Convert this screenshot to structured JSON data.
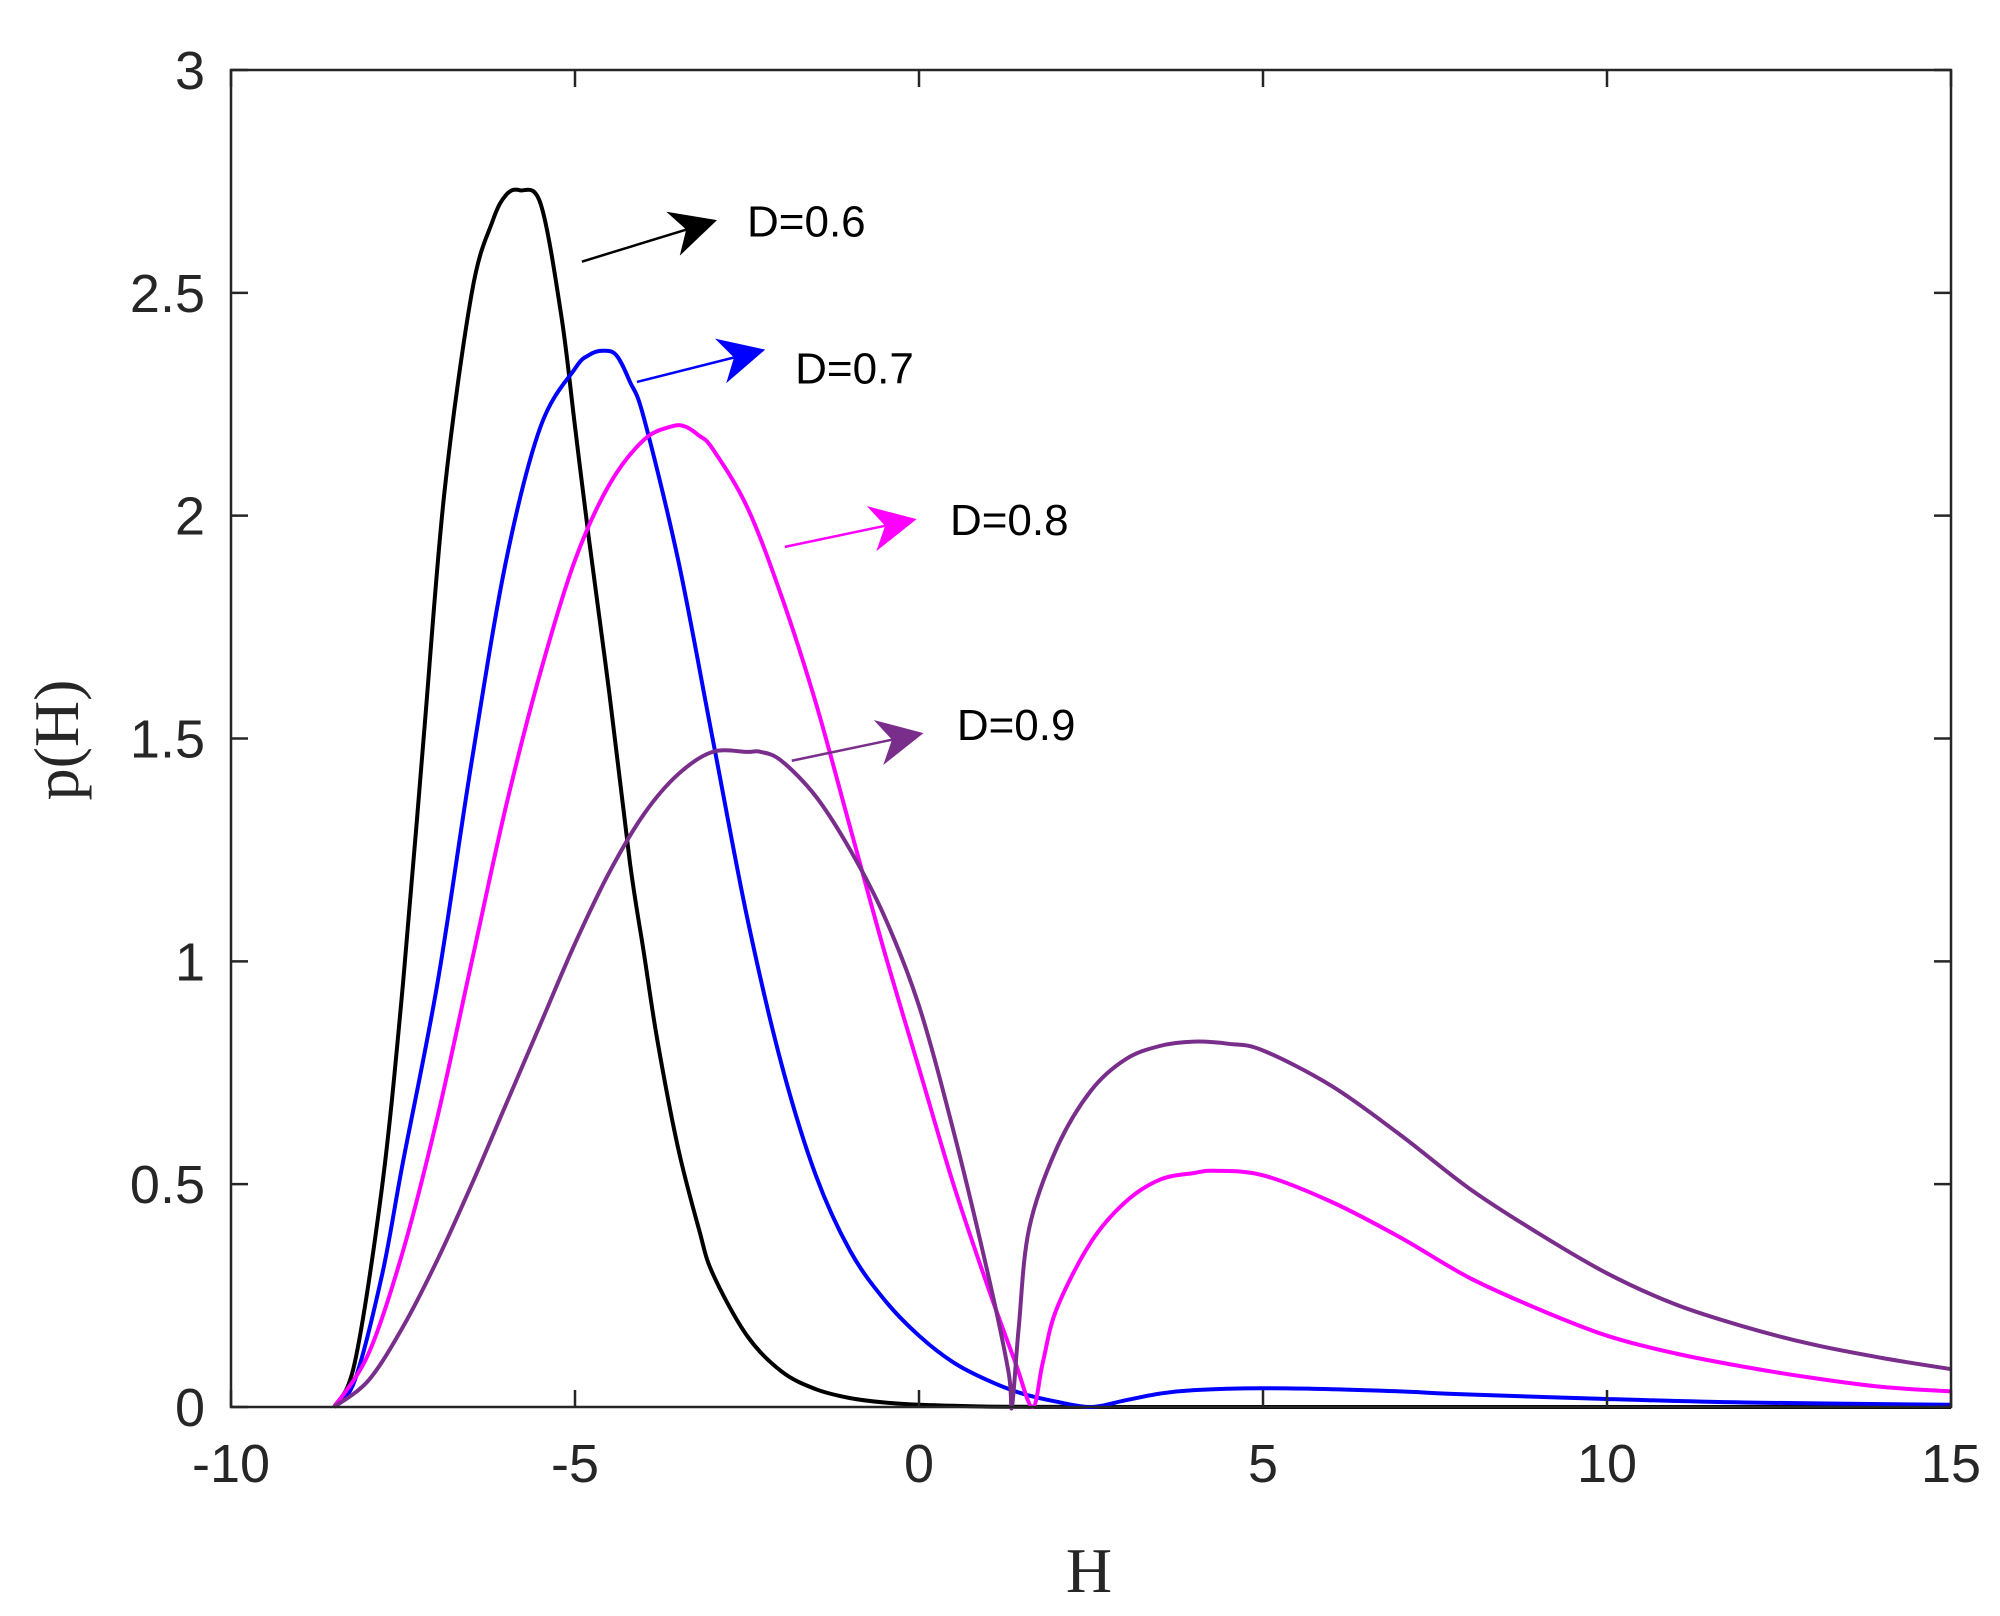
{
  "chart_data": {
    "type": "line",
    "title": "",
    "xlabel": "H",
    "ylabel": "p(H)",
    "xlim": [
      -10,
      15
    ],
    "ylim": [
      0,
      3
    ],
    "xticks": [
      -10,
      -5,
      0,
      5,
      10,
      15
    ],
    "xtick_labels": [
      "-10",
      "-5",
      "0",
      "5",
      "10",
      "15"
    ],
    "yticks": [
      0,
      0.5,
      1,
      1.5,
      2,
      2.5,
      3
    ],
    "ytick_labels": [
      "0",
      "0.5",
      "1",
      "1.5",
      "2",
      "2.5",
      "3"
    ],
    "grid": false,
    "legend": "none",
    "series": [
      {
        "name": "D=0.6",
        "color": "#000000",
        "x": [
          -8.5,
          -8.2,
          -7.8,
          -7.5,
          -7.2,
          -6.9,
          -6.5,
          -6.2,
          -6.0,
          -5.8,
          -5.5,
          -5.2,
          -5.0,
          -4.8,
          -4.5,
          -4.2,
          -4.0,
          -3.8,
          -3.5,
          -3.2,
          -3.0,
          -2.5,
          -2.0,
          -1.5,
          -1.0,
          -0.5,
          0.0,
          0.5,
          1.0,
          1.5,
          2.0,
          3.0,
          5.0,
          10.0,
          15.0
        ],
        "y": [
          0,
          0.1,
          0.5,
          0.95,
          1.5,
          2.05,
          2.5,
          2.66,
          2.72,
          2.73,
          2.7,
          2.45,
          2.2,
          1.95,
          1.6,
          1.22,
          1.02,
          0.82,
          0.58,
          0.4,
          0.3,
          0.16,
          0.08,
          0.04,
          0.02,
          0.01,
          0.005,
          0.003,
          0.001,
          0.0005,
          0.0002,
          0,
          0,
          0,
          0
        ]
      },
      {
        "name": "D=0.7",
        "color": "#0000ff",
        "x": [
          -8.5,
          -8.2,
          -7.8,
          -7.5,
          -7.0,
          -6.5,
          -6.0,
          -5.5,
          -5.0,
          -4.8,
          -4.6,
          -4.4,
          -4.2,
          -4.0,
          -3.5,
          -3.0,
          -2.5,
          -2.0,
          -1.5,
          -1.0,
          -0.5,
          0.0,
          0.5,
          1.0,
          1.5,
          2.0,
          2.5,
          3.0,
          3.5,
          4.0,
          5.0,
          6.0,
          7.0,
          8.0,
          10.0,
          12.0,
          15.0
        ],
        "y": [
          0,
          0.06,
          0.3,
          0.55,
          0.95,
          1.45,
          1.9,
          2.2,
          2.33,
          2.36,
          2.37,
          2.36,
          2.3,
          2.22,
          1.9,
          1.5,
          1.1,
          0.77,
          0.52,
          0.35,
          0.24,
          0.16,
          0.1,
          0.06,
          0.03,
          0.012,
          0.0,
          0.015,
          0.03,
          0.038,
          0.042,
          0.04,
          0.035,
          0.028,
          0.018,
          0.01,
          0.005
        ]
      },
      {
        "name": "D=0.8",
        "color": "#ff00ff",
        "x": [
          -8.5,
          -8.0,
          -7.5,
          -7.0,
          -6.5,
          -6.0,
          -5.5,
          -5.0,
          -4.5,
          -4.0,
          -3.6,
          -3.4,
          -3.2,
          -3.0,
          -2.5,
          -2.0,
          -1.5,
          -1.0,
          -0.5,
          0.0,
          0.5,
          1.0,
          1.4,
          1.65,
          1.8,
          2.0,
          2.5,
          3.0,
          3.5,
          4.0,
          4.3,
          5.0,
          6.0,
          7.0,
          8.0,
          9.0,
          10.0,
          11.0,
          12.0,
          13.0,
          14.0,
          15.0
        ],
        "y": [
          0,
          0.12,
          0.35,
          0.65,
          1.0,
          1.35,
          1.65,
          1.9,
          2.07,
          2.17,
          2.2,
          2.2,
          2.18,
          2.15,
          2.02,
          1.82,
          1.58,
          1.3,
          1.02,
          0.76,
          0.5,
          0.27,
          0.1,
          0.0,
          0.1,
          0.22,
          0.37,
          0.46,
          0.51,
          0.525,
          0.53,
          0.52,
          0.46,
          0.38,
          0.29,
          0.22,
          0.16,
          0.12,
          0.09,
          0.065,
          0.045,
          0.035
        ]
      },
      {
        "name": "D=0.9",
        "color": "#7a2e8c",
        "x": [
          -8.5,
          -8.0,
          -7.5,
          -7.0,
          -6.5,
          -6.0,
          -5.5,
          -5.0,
          -4.5,
          -4.0,
          -3.5,
          -3.0,
          -2.5,
          -2.3,
          -2.0,
          -1.5,
          -1.0,
          -0.5,
          0.0,
          0.5,
          1.0,
          1.3,
          1.35,
          1.45,
          1.6,
          2.0,
          2.5,
          3.0,
          3.5,
          4.0,
          4.5,
          5.0,
          6.0,
          7.0,
          8.0,
          9.0,
          10.0,
          11.0,
          12.0,
          13.0,
          14.0,
          15.0
        ],
        "y": [
          0,
          0.06,
          0.18,
          0.33,
          0.5,
          0.68,
          0.86,
          1.04,
          1.2,
          1.33,
          1.42,
          1.47,
          1.47,
          1.47,
          1.45,
          1.37,
          1.25,
          1.1,
          0.9,
          0.62,
          0.3,
          0.08,
          0.0,
          0.18,
          0.4,
          0.58,
          0.71,
          0.78,
          0.81,
          0.82,
          0.815,
          0.8,
          0.72,
          0.61,
          0.49,
          0.39,
          0.3,
          0.23,
          0.18,
          0.14,
          0.11,
          0.085
        ]
      }
    ],
    "annotations": [
      {
        "text": "D=0.6",
        "color": "#000000",
        "arrow_from": [
          -4.9,
          2.57
        ],
        "arrow_to": [
          -3.0,
          2.66
        ],
        "label_at": [
          -2.5,
          2.66
        ]
      },
      {
        "text": "D=0.7",
        "color": "#0000ff",
        "arrow_from": [
          -4.1,
          2.3
        ],
        "arrow_to": [
          -2.3,
          2.37
        ],
        "label_at": [
          -1.8,
          2.33
        ]
      },
      {
        "text": "D=0.8",
        "color": "#ff00ff",
        "arrow_from": [
          -1.95,
          1.93
        ],
        "arrow_to": [
          -0.1,
          1.99
        ],
        "label_at": [
          0.45,
          1.99
        ]
      },
      {
        "text": "D=0.9",
        "color": "#7a2e8c",
        "arrow_from": [
          -1.85,
          1.45
        ],
        "arrow_to": [
          0.0,
          1.51
        ],
        "label_at": [
          0.55,
          1.53
        ]
      }
    ]
  }
}
